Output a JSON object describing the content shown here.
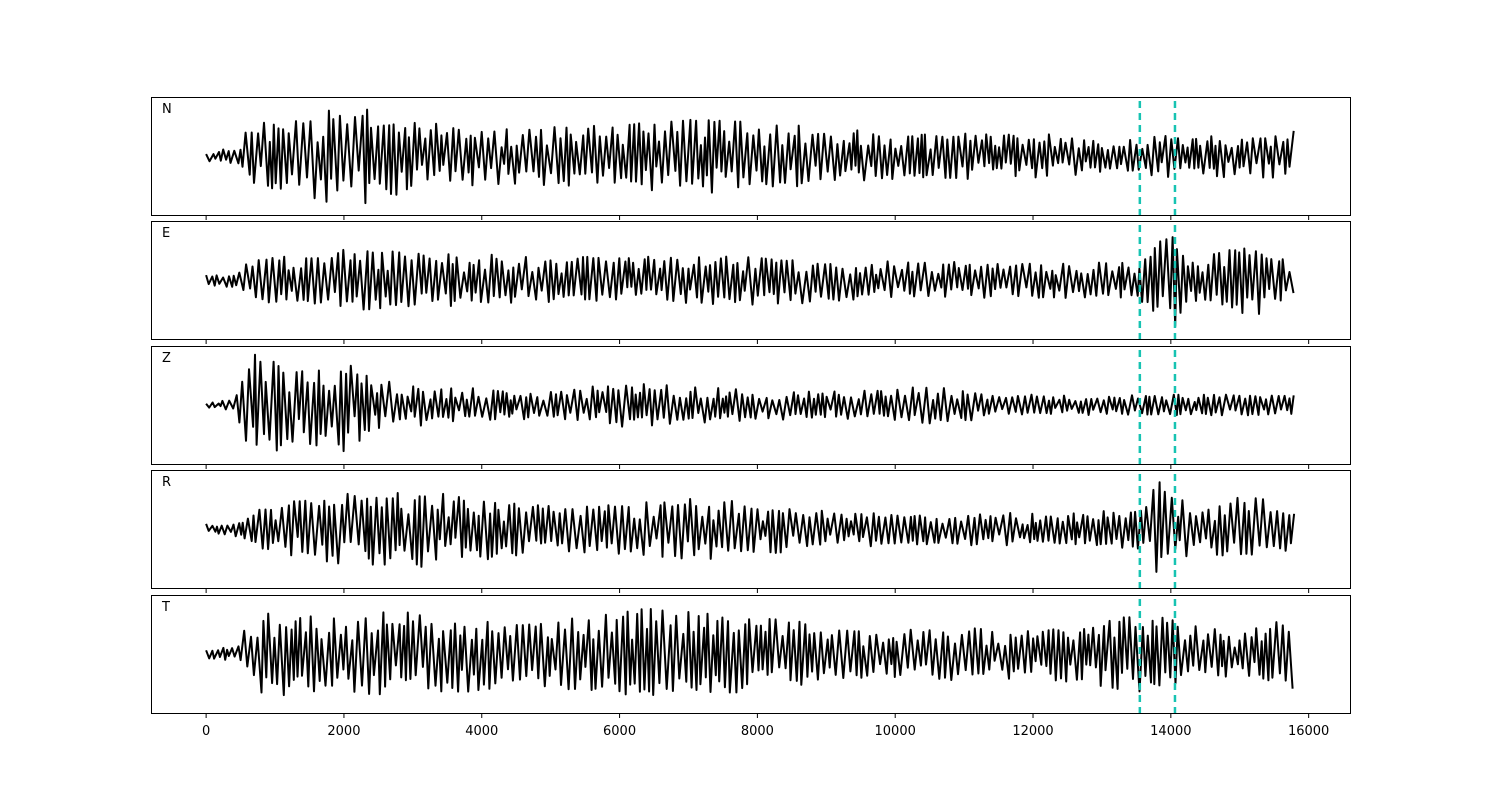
{
  "chart_data": {
    "type": "line",
    "panels": [
      "N",
      "E",
      "Z",
      "R",
      "T"
    ],
    "x_range": [
      0,
      15800
    ],
    "xlim": [
      -800,
      16600
    ],
    "x_ticks": [
      0,
      2000,
      4000,
      6000,
      8000,
      10000,
      12000,
      14000,
      16000
    ],
    "x_tick_labels": [
      "0",
      "2000",
      "4000",
      "6000",
      "8000",
      "10000",
      "12000",
      "14000",
      "16000"
    ],
    "markers": [
      13550,
      14060
    ],
    "colors": {
      "trace": "#000000",
      "marker": "#17c3b2"
    },
    "grid": false,
    "envelopes": {
      "N": [
        [
          0,
          0.1
        ],
        [
          500,
          0.15
        ],
        [
          600,
          0.6
        ],
        [
          1500,
          0.85
        ],
        [
          2300,
          0.95
        ],
        [
          3000,
          0.65
        ],
        [
          4500,
          0.55
        ],
        [
          6000,
          0.6
        ],
        [
          7000,
          0.75
        ],
        [
          8000,
          0.65
        ],
        [
          10000,
          0.45
        ],
        [
          12000,
          0.45
        ],
        [
          13600,
          0.3
        ],
        [
          13800,
          0.45
        ],
        [
          15000,
          0.4
        ],
        [
          15800,
          0.5
        ]
      ],
      "E": [
        [
          0,
          0.1
        ],
        [
          500,
          0.15
        ],
        [
          600,
          0.4
        ],
        [
          2000,
          0.6
        ],
        [
          3000,
          0.55
        ],
        [
          5000,
          0.45
        ],
        [
          7000,
          0.45
        ],
        [
          8000,
          0.5
        ],
        [
          10000,
          0.35
        ],
        [
          13500,
          0.35
        ],
        [
          13800,
          1.0
        ],
        [
          14100,
          0.9
        ],
        [
          14300,
          0.4
        ],
        [
          15200,
          0.7
        ],
        [
          15800,
          0.4
        ]
      ],
      "Z": [
        [
          0,
          0.05
        ],
        [
          400,
          0.1
        ],
        [
          500,
          0.55
        ],
        [
          700,
          1.0
        ],
        [
          1300,
          0.8
        ],
        [
          2000,
          0.9
        ],
        [
          2500,
          0.5
        ],
        [
          3500,
          0.35
        ],
        [
          5000,
          0.25
        ],
        [
          6000,
          0.45
        ],
        [
          7000,
          0.35
        ],
        [
          9000,
          0.25
        ],
        [
          10800,
          0.4
        ],
        [
          11500,
          0.2
        ],
        [
          15800,
          0.2
        ]
      ],
      "R": [
        [
          0,
          0.1
        ],
        [
          500,
          0.15
        ],
        [
          600,
          0.4
        ],
        [
          2000,
          0.7
        ],
        [
          3000,
          0.75
        ],
        [
          5000,
          0.45
        ],
        [
          7400,
          0.6
        ],
        [
          9000,
          0.35
        ],
        [
          12500,
          0.3
        ],
        [
          13600,
          0.4
        ],
        [
          13800,
          1.0
        ],
        [
          14100,
          0.7
        ],
        [
          14400,
          0.4
        ],
        [
          15200,
          0.7
        ],
        [
          15800,
          0.4
        ]
      ],
      "T": [
        [
          0,
          0.1
        ],
        [
          500,
          0.15
        ],
        [
          600,
          0.8
        ],
        [
          2000,
          0.8
        ],
        [
          3400,
          0.8
        ],
        [
          4900,
          0.65
        ],
        [
          6400,
          0.9
        ],
        [
          8000,
          0.7
        ],
        [
          10000,
          0.45
        ],
        [
          11000,
          0.55
        ],
        [
          12000,
          0.45
        ],
        [
          13800,
          0.8
        ],
        [
          14100,
          0.6
        ],
        [
          15000,
          0.45
        ],
        [
          15800,
          0.7
        ]
      ]
    }
  }
}
